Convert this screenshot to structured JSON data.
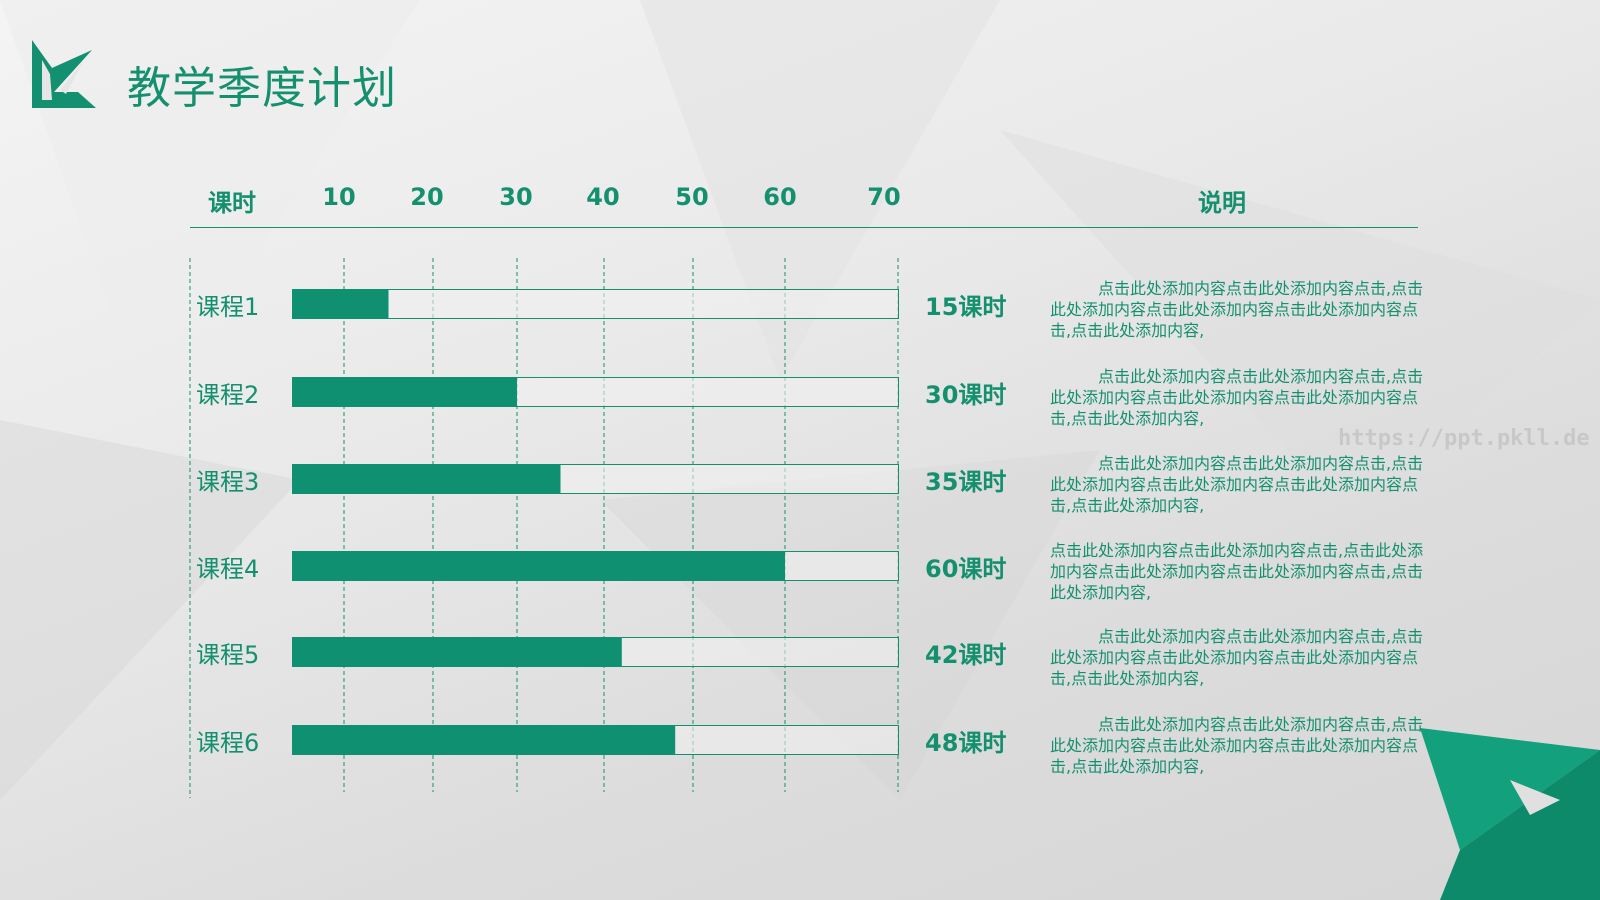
{
  "title": "教学季度计划",
  "colors": {
    "accent": "#0f9070",
    "track_border": "#14906f"
  },
  "watermark": "https://ppt.pkll.de",
  "headers": {
    "hours": "课时",
    "description": "说明"
  },
  "chart_data": {
    "type": "bar",
    "orientation": "horizontal",
    "categories": [
      "课程1",
      "课程2",
      "课程3",
      "课程4",
      "课程5",
      "课程6"
    ],
    "values": [
      15,
      30,
      35,
      60,
      42,
      48
    ],
    "value_labels": [
      "15课时",
      "30课时",
      "35课时",
      "60课时",
      "42课时",
      "48课时"
    ],
    "xticks": [
      10,
      20,
      30,
      40,
      50,
      60,
      70
    ],
    "xlim": [
      0,
      70
    ],
    "xlabel": "课时",
    "grid": true
  },
  "descriptions": [
    "点击此处添加内容点击此处添加内容点击,点击此处添加内容点击此处添加内容点击此处添加内容点击,点击此处添加内容,",
    "点击此处添加内容点击此处添加内容点击,点击此处添加内容点击此处添加内容点击此处添加内容点击,点击此处添加内容,",
    "点击此处添加内容点击此处添加内容点击,点击此处添加内容点击此处添加内容点击此处添加内容点击,点击此处添加内容,",
    "点击此处添加内容点击此处添加内容点击,点击此处添加内容点击此处添加内容点击此处添加内容点击,点击此处添加内容,",
    "点击此处添加内容点击此处添加内容点击,点击此处添加内容点击此处添加内容点击此处添加内容点击,点击此处添加内容,",
    "点击此处添加内容点击此处添加内容点击,点击此处添加内容点击此处添加内容点击此处添加内容点击,点击此处添加内容,"
  ]
}
